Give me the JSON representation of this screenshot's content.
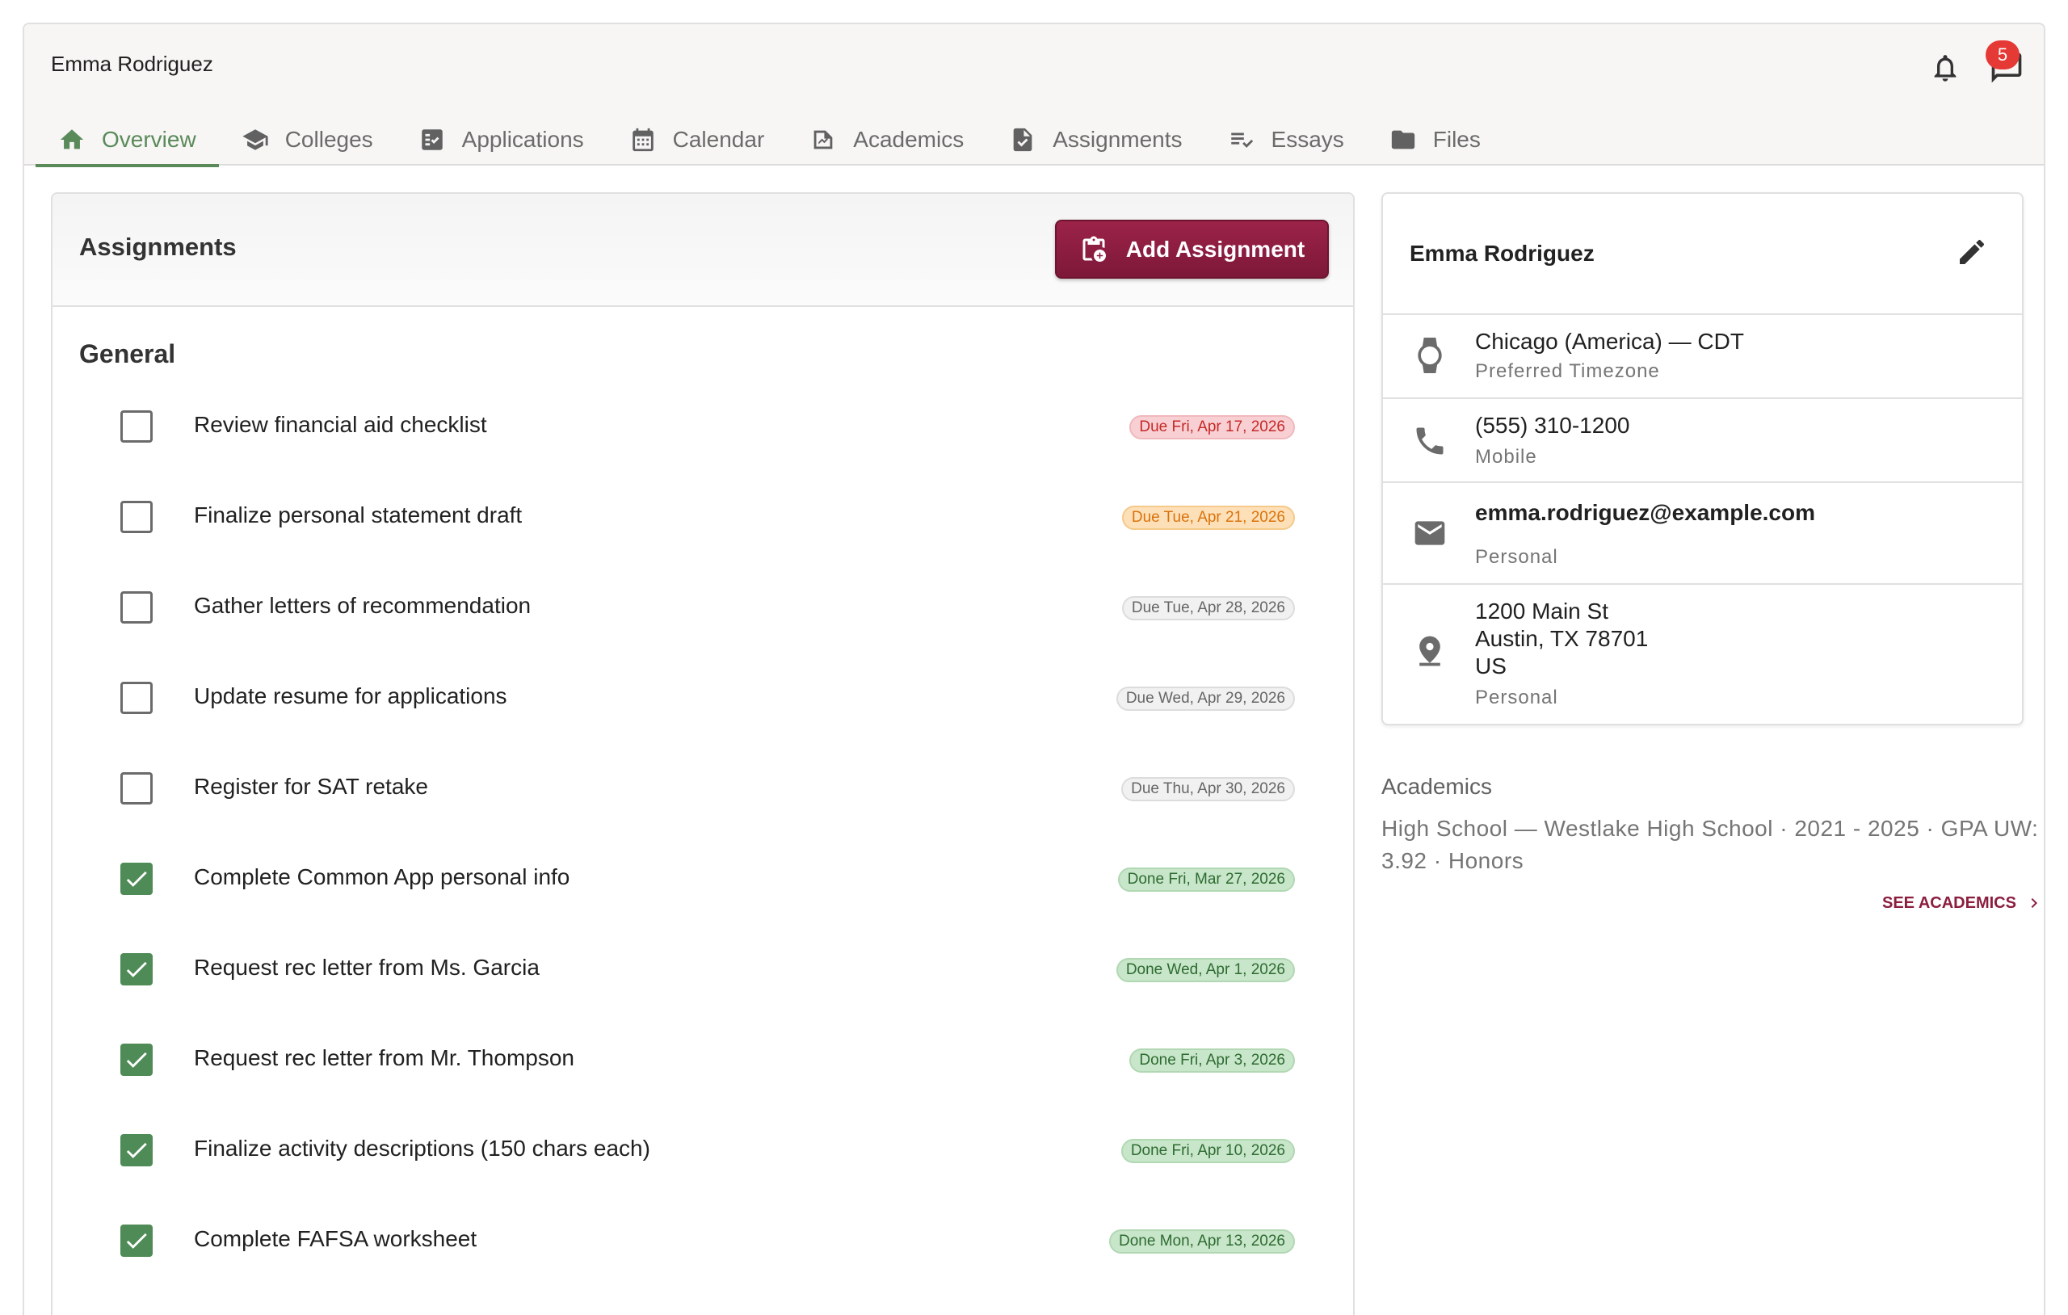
{
  "header": {
    "student_name": "Emma Rodriguez",
    "notification_count": "5"
  },
  "tabs": [
    {
      "label": "Overview",
      "icon": "home-icon",
      "active": true
    },
    {
      "label": "Colleges",
      "icon": "school-icon"
    },
    {
      "label": "Applications",
      "icon": "applications-icon"
    },
    {
      "label": "Calendar",
      "icon": "calendar-icon"
    },
    {
      "label": "Academics",
      "icon": "academics-icon"
    },
    {
      "label": "Assignments",
      "icon": "assignment-icon"
    },
    {
      "label": "Essays",
      "icon": "essay-icon"
    },
    {
      "label": "Files",
      "icon": "folder-icon"
    }
  ],
  "assignments": {
    "title": "Assignments",
    "add_button": "Add Assignment",
    "group": "General",
    "items": [
      {
        "label": "Review financial aid checklist",
        "due": "Due Fri, Apr 17, 2026",
        "done": false,
        "status": "red"
      },
      {
        "label": "Finalize personal statement draft",
        "due": "Due Tue, Apr 21, 2026",
        "done": false,
        "status": "orange"
      },
      {
        "label": "Gather letters of recommendation",
        "due": "Due Tue, Apr 28, 2026",
        "done": false,
        "status": "grey"
      },
      {
        "label": "Update resume for applications",
        "due": "Due Wed, Apr 29, 2026",
        "done": false,
        "status": "grey"
      },
      {
        "label": "Register for SAT retake",
        "due": "Due Thu, Apr 30, 2026",
        "done": false,
        "status": "grey"
      },
      {
        "label": "Complete Common App personal info",
        "due": "Done Fri, Mar 27, 2026",
        "done": true,
        "status": "green"
      },
      {
        "label": "Request rec letter from Ms. Garcia",
        "due": "Done Wed, Apr 1, 2026",
        "done": true,
        "status": "green"
      },
      {
        "label": "Request rec letter from Mr. Thompson",
        "due": "Done Fri, Apr 3, 2026",
        "done": true,
        "status": "green"
      },
      {
        "label": "Finalize activity descriptions (150 chars each)",
        "due": "Done Fri, Apr 10, 2026",
        "done": true,
        "status": "green"
      },
      {
        "label": "Complete FAFSA worksheet",
        "due": "Done Mon, Apr 13, 2026",
        "done": true,
        "status": "green"
      }
    ]
  },
  "contact": {
    "name": "Emma Rodriguez",
    "timezone": "Chicago (America) — CDT",
    "timezone_label": "Preferred Timezone",
    "phone": "(555) 310-1200",
    "phone_label": "Mobile",
    "email": "emma.rodriguez@example.com",
    "email_label": "Personal",
    "address_line1": "1200 Main St",
    "address_line2": "Austin, TX 78701",
    "address_line3": "US",
    "address_label": "Personal"
  },
  "academics": {
    "title": "Academics",
    "summary": "High School — Westlake High School · 2021 - 2025 · GPA UW: 3.92 · Honors",
    "link": "SEE ACADEMICS"
  },
  "colors": {
    "accent_green": "#5a8a5a",
    "brand_maroon": "#8b1e3f",
    "badge_red": "#e53935"
  }
}
